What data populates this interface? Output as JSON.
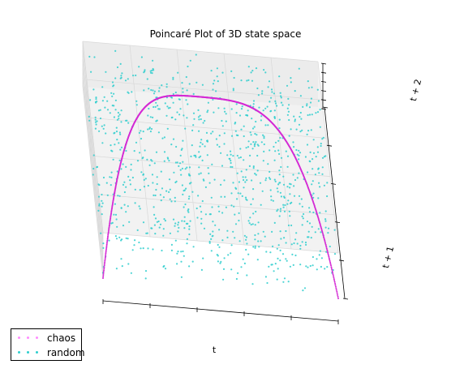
{
  "chart_data": {
    "type": "scatter",
    "projection": "3d",
    "title": "Poincaré Plot of 3D state space",
    "xlabel": "t",
    "ylabel": "t + 1",
    "zlabel": "t + 2",
    "xlim": [
      0,
      1
    ],
    "ylim": [
      0,
      1
    ],
    "zlim": [
      0,
      1
    ],
    "grid": true,
    "legend_position": "lower-left",
    "series": [
      {
        "name": "chaos",
        "color": "#d42ad4",
        "marker": "point",
        "generator": "logistic map x(n+1) = 4·x(n)·(1 − x(n))",
        "points_approx": [
          [
            0.0,
            0.0,
            0.0
          ],
          [
            0.05,
            0.19,
            0.62
          ],
          [
            0.1,
            0.36,
            0.92
          ],
          [
            0.2,
            0.64,
            0.92
          ],
          [
            0.3,
            0.84,
            0.54
          ],
          [
            0.4,
            0.96,
            0.15
          ],
          [
            0.5,
            1.0,
            0.0
          ],
          [
            0.6,
            0.96,
            0.15
          ],
          [
            0.7,
            0.84,
            0.54
          ],
          [
            0.8,
            0.64,
            0.92
          ],
          [
            0.9,
            0.36,
            0.92
          ],
          [
            0.95,
            0.19,
            0.62
          ],
          [
            1.0,
            0.0,
            0.0
          ]
        ]
      },
      {
        "name": "random",
        "color": "#2ecece",
        "marker": "point",
        "distribution": "uniform on [0, 1]³",
        "count_approx": 1000
      }
    ]
  },
  "legend": {
    "entries": [
      "chaos",
      "random"
    ]
  }
}
